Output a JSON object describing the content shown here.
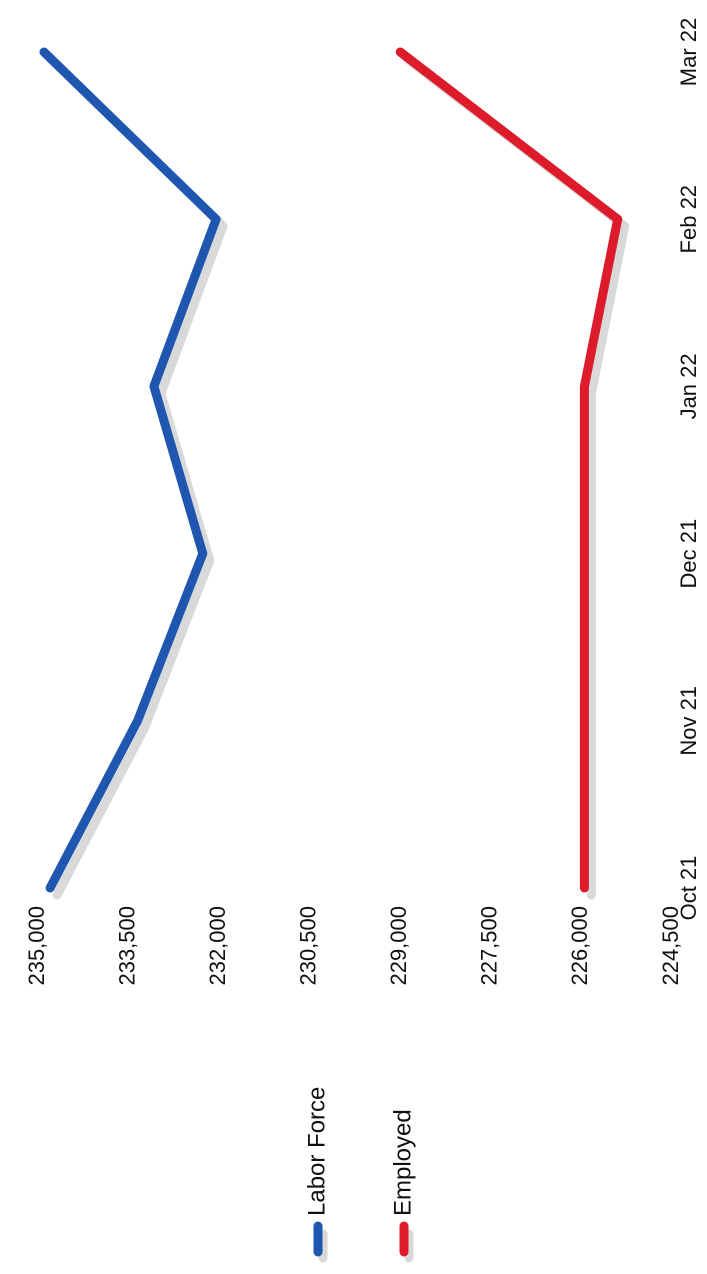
{
  "chart_data": {
    "type": "line",
    "orientation": "rotated-90-clockwise",
    "categories": [
      "Oct 21",
      "Nov 21",
      "Dec 21",
      "Jan 22",
      "Feb 22",
      "Mar 22"
    ],
    "series": [
      {
        "name": "Labor Force",
        "color": "#1f57b0",
        "values": [
          234800,
          233350,
          232270,
          233080,
          232050,
          234900
        ]
      },
      {
        "name": "Employed",
        "color": "#dd1b2a",
        "values": [
          225950,
          225950,
          225950,
          225950,
          225400,
          229000
        ]
      }
    ],
    "y_ticks": [
      "235,000",
      "233,500",
      "232,000",
      "230,500",
      "229,000",
      "227,500",
      "226,000",
      "224,500"
    ],
    "ylim": [
      224500,
      235000
    ],
    "grid": false,
    "legend_position": "left",
    "line_shadow": true
  }
}
